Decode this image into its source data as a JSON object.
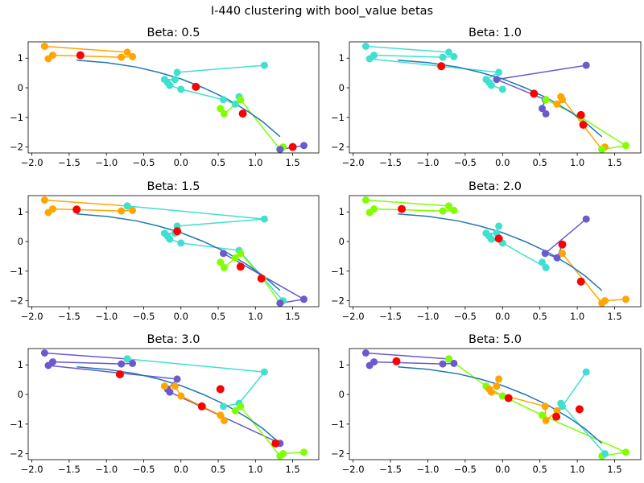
{
  "figure": {
    "title": "I-440 clustering with bool_value betas"
  },
  "chart_data": {
    "type": "scatter",
    "xlim": [
      -2.05,
      1.85
    ],
    "ylim": [
      -2.2,
      1.55
    ],
    "xticks": [
      -2.0,
      -1.5,
      -1.0,
      -0.5,
      0.0,
      0.5,
      1.0,
      1.5
    ],
    "xtick_labels": [
      "−2.0",
      "−1.5",
      "−1.0",
      "−0.5",
      "0.0",
      "0.5",
      "1.0",
      "1.5"
    ],
    "yticks": [
      1,
      0,
      -1,
      -2
    ],
    "ytick_labels": [
      "1",
      "0",
      "−1",
      "−2"
    ],
    "grid": false,
    "colors": {
      "curve": "#1f77b4",
      "centroid": "#ff0000",
      "orange": "#ffa500",
      "turquoise": "#40e0d0",
      "chartreuse": "#7fff00",
      "slateblue": "#6a5acd"
    },
    "points": [
      [
        -1.83,
        1.4
      ],
      [
        -1.78,
        0.98
      ],
      [
        -1.72,
        1.1
      ],
      [
        -0.72,
        1.2
      ],
      [
        -0.65,
        1.05
      ],
      [
        -0.8,
        1.03
      ],
      [
        -0.05,
        0.52
      ],
      [
        -0.08,
        0.28
      ],
      [
        -0.22,
        0.28
      ],
      [
        -0.18,
        0.18
      ],
      [
        -0.15,
        0.08
      ],
      [
        0.0,
        -0.05
      ],
      [
        1.12,
        0.76
      ],
      [
        0.57,
        -0.4
      ],
      [
        0.53,
        -0.7
      ],
      [
        0.58,
        -0.88
      ],
      [
        0.73,
        -0.55
      ],
      [
        0.78,
        -0.3
      ],
      [
        0.8,
        -0.4
      ],
      [
        1.37,
        -2.0
      ],
      [
        1.33,
        -2.08
      ],
      [
        1.65,
        -1.95
      ]
    ],
    "curve": [
      [
        -1.4,
        0.93
      ],
      [
        -1.0,
        0.85
      ],
      [
        -0.6,
        0.7
      ],
      [
        -0.3,
        0.52
      ],
      [
        0.0,
        0.3
      ],
      [
        0.3,
        0.0
      ],
      [
        0.6,
        -0.35
      ],
      [
        0.9,
        -0.8
      ],
      [
        1.1,
        -1.15
      ],
      [
        1.33,
        -1.65
      ]
    ],
    "panels": [
      {
        "title": "Beta: 0.5",
        "series": [
          {
            "color": "orange",
            "points": [
              [
                -1.83,
                1.4
              ],
              [
                -0.72,
                1.2
              ],
              [
                -0.65,
                1.05
              ],
              [
                -0.8,
                1.03
              ],
              [
                -1.72,
                1.1
              ],
              [
                -1.78,
                0.98
              ]
            ]
          },
          {
            "color": "turquoise",
            "points": [
              [
                1.12,
                0.76
              ],
              [
                -0.05,
                0.52
              ],
              [
                -0.08,
                0.28
              ],
              [
                -0.22,
                0.28
              ],
              [
                -0.18,
                0.18
              ],
              [
                -0.15,
                0.08
              ],
              [
                0.0,
                -0.05
              ],
              [
                0.57,
                -0.4
              ],
              [
                0.73,
                -0.55
              ],
              [
                0.8,
                -0.4
              ],
              [
                0.78,
                -0.3
              ]
            ]
          },
          {
            "color": "chartreuse",
            "points": [
              [
                0.53,
                -0.7
              ],
              [
                0.58,
                -0.88
              ],
              [
                0.8,
                -0.4
              ],
              [
                1.33,
                -2.08
              ],
              [
                1.37,
                -2.0
              ]
            ]
          },
          {
            "color": "slateblue",
            "points": [
              [
                1.33,
                -2.08
              ],
              [
                1.65,
                -1.95
              ]
            ]
          }
        ],
        "centroids": [
          [
            -1.35,
            1.1
          ],
          [
            0.2,
            0.03
          ],
          [
            0.83,
            -0.87
          ],
          [
            1.5,
            -2.0
          ]
        ]
      },
      {
        "title": "Beta: 1.0",
        "series": [
          {
            "color": "turquoise",
            "points": [
              [
                -1.83,
                1.4
              ],
              [
                -0.72,
                1.2
              ],
              [
                -0.65,
                1.05
              ],
              [
                -0.8,
                1.03
              ],
              [
                -1.72,
                1.1
              ],
              [
                -1.78,
                0.98
              ],
              [
                -0.05,
                0.52
              ],
              [
                -0.22,
                0.28
              ],
              [
                -0.18,
                0.18
              ],
              [
                -0.15,
                0.08
              ],
              [
                0.0,
                -0.05
              ]
            ]
          },
          {
            "color": "slateblue",
            "points": [
              [
                1.12,
                0.76
              ],
              [
                -0.08,
                0.28
              ],
              [
                0.57,
                -0.4
              ],
              [
                0.53,
                -0.7
              ],
              [
                0.58,
                -0.88
              ]
            ]
          },
          {
            "color": "orange",
            "points": [
              [
                0.73,
                -0.55
              ],
              [
                0.8,
                -0.4
              ],
              [
                0.78,
                -0.3
              ],
              [
                1.33,
                -2.08
              ],
              [
                1.37,
                -2.0
              ]
            ]
          },
          {
            "color": "chartreuse",
            "points": [
              [
                0.58,
                -0.4
              ],
              [
                1.05,
                -1.0
              ],
              [
                1.65,
                -1.95
              ],
              [
                1.33,
                -2.08
              ]
            ]
          }
        ],
        "centroids": [
          [
            -0.82,
            0.73
          ],
          [
            0.42,
            -0.2
          ],
          [
            1.05,
            -0.92
          ],
          [
            1.08,
            -1.25
          ]
        ]
      },
      {
        "title": "Beta: 1.5",
        "series": [
          {
            "color": "orange",
            "points": [
              [
                -1.83,
                1.4
              ],
              [
                -0.72,
                1.2
              ],
              [
                -0.65,
                1.05
              ],
              [
                -0.8,
                1.03
              ],
              [
                -1.72,
                1.1
              ],
              [
                -1.78,
                0.98
              ]
            ]
          },
          {
            "color": "turquoise",
            "points": [
              [
                -0.72,
                1.2
              ],
              [
                1.12,
                0.76
              ],
              [
                -0.05,
                0.52
              ],
              [
                -0.08,
                0.28
              ],
              [
                -0.22,
                0.28
              ],
              [
                -0.18,
                0.18
              ],
              [
                -0.15,
                0.08
              ],
              [
                0.0,
                -0.05
              ],
              [
                0.78,
                -0.3
              ],
              [
                1.37,
                -2.0
              ]
            ]
          },
          {
            "color": "chartreuse",
            "points": [
              [
                0.53,
                -0.7
              ],
              [
                0.58,
                -0.88
              ],
              [
                0.73,
                -0.55
              ],
              [
                0.8,
                -0.4
              ],
              [
                1.1,
                -1.25
              ],
              [
                1.33,
                -2.08
              ]
            ]
          },
          {
            "color": "slateblue",
            "points": [
              [
                0.57,
                -0.4
              ],
              [
                1.65,
                -1.95
              ],
              [
                1.33,
                -2.08
              ]
            ]
          }
        ],
        "centroids": [
          [
            -1.4,
            1.08
          ],
          [
            -0.05,
            0.35
          ],
          [
            0.8,
            -0.85
          ],
          [
            1.08,
            -1.25
          ]
        ]
      },
      {
        "title": "Beta: 2.0",
        "series": [
          {
            "color": "chartreuse",
            "points": [
              [
                -1.83,
                1.4
              ],
              [
                -0.72,
                1.2
              ],
              [
                -0.65,
                1.05
              ],
              [
                -0.8,
                1.03
              ],
              [
                -1.72,
                1.1
              ],
              [
                -1.78,
                0.98
              ]
            ]
          },
          {
            "color": "turquoise",
            "points": [
              [
                -0.05,
                0.52
              ],
              [
                -0.08,
                0.28
              ],
              [
                -0.22,
                0.28
              ],
              [
                -0.18,
                0.18
              ],
              [
                -0.15,
                0.08
              ],
              [
                0.0,
                -0.05
              ],
              [
                0.58,
                -0.88
              ],
              [
                0.53,
                -0.7
              ]
            ]
          },
          {
            "color": "slateblue",
            "points": [
              [
                1.12,
                0.76
              ],
              [
                0.57,
                -0.4
              ],
              [
                0.73,
                -0.55
              ],
              [
                0.8,
                -0.1
              ]
            ]
          },
          {
            "color": "orange",
            "points": [
              [
                0.8,
                -0.4
              ],
              [
                1.33,
                -2.08
              ],
              [
                1.37,
                -2.0
              ],
              [
                1.65,
                -1.95
              ]
            ]
          }
        ],
        "centroids": [
          [
            -1.35,
            1.1
          ],
          [
            -0.05,
            0.1
          ],
          [
            0.8,
            -0.1
          ],
          [
            1.05,
            -1.35
          ]
        ]
      },
      {
        "title": "Beta: 3.0",
        "series": [
          {
            "color": "slateblue",
            "points": [
              [
                -1.83,
                1.4
              ],
              [
                -0.72,
                1.2
              ],
              [
                -0.65,
                1.05
              ],
              [
                -0.8,
                1.03
              ],
              [
                -1.72,
                1.1
              ],
              [
                -1.78,
                0.98
              ],
              [
                -0.05,
                0.52
              ],
              [
                -0.18,
                0.18
              ],
              [
                -0.15,
                0.08
              ],
              [
                1.33,
                -1.65
              ]
            ]
          },
          {
            "color": "turquoise",
            "points": [
              [
                -0.72,
                1.2
              ],
              [
                1.12,
                0.76
              ],
              [
                0.78,
                -0.3
              ],
              [
                0.57,
                -0.4
              ]
            ]
          },
          {
            "color": "orange",
            "points": [
              [
                -0.22,
                0.28
              ],
              [
                -0.08,
                0.28
              ],
              [
                0.0,
                -0.05
              ],
              [
                0.53,
                -0.7
              ],
              [
                0.58,
                -0.88
              ]
            ]
          },
          {
            "color": "chartreuse",
            "points": [
              [
                0.73,
                -0.55
              ],
              [
                0.8,
                -0.4
              ],
              [
                1.33,
                -2.08
              ],
              [
                1.37,
                -2.0
              ],
              [
                1.65,
                -1.95
              ]
            ]
          }
        ],
        "centroids": [
          [
            -0.82,
            0.68
          ],
          [
            0.53,
            0.18
          ],
          [
            0.28,
            -0.4
          ],
          [
            1.27,
            -1.65
          ]
        ]
      },
      {
        "title": "Beta: 5.0",
        "series": [
          {
            "color": "slateblue",
            "points": [
              [
                -1.83,
                1.4
              ],
              [
                -0.72,
                1.2
              ],
              [
                -0.65,
                1.05
              ],
              [
                -0.8,
                1.03
              ],
              [
                -1.72,
                1.1
              ],
              [
                -1.78,
                0.98
              ]
            ]
          },
          {
            "color": "chartreuse",
            "points": [
              [
                -0.72,
                1.2
              ],
              [
                -0.22,
                0.28
              ],
              [
                0.0,
                -0.05
              ],
              [
                0.53,
                -0.7
              ],
              [
                1.65,
                -1.95
              ],
              [
                1.33,
                -2.08
              ]
            ]
          },
          {
            "color": "orange",
            "points": [
              [
                -0.05,
                0.52
              ],
              [
                -0.08,
                0.28
              ],
              [
                -0.18,
                0.18
              ],
              [
                -0.15,
                0.08
              ],
              [
                0.57,
                -0.4
              ],
              [
                0.58,
                -0.88
              ],
              [
                0.73,
                -0.55
              ]
            ]
          },
          {
            "color": "turquoise",
            "points": [
              [
                1.12,
                0.76
              ],
              [
                0.8,
                -0.4
              ],
              [
                0.78,
                -0.3
              ],
              [
                1.37,
                -2.0
              ]
            ]
          }
        ],
        "centroids": [
          [
            -1.42,
            1.12
          ],
          [
            0.08,
            -0.12
          ],
          [
            0.72,
            -0.75
          ],
          [
            1.03,
            -0.5
          ]
        ]
      }
    ]
  }
}
